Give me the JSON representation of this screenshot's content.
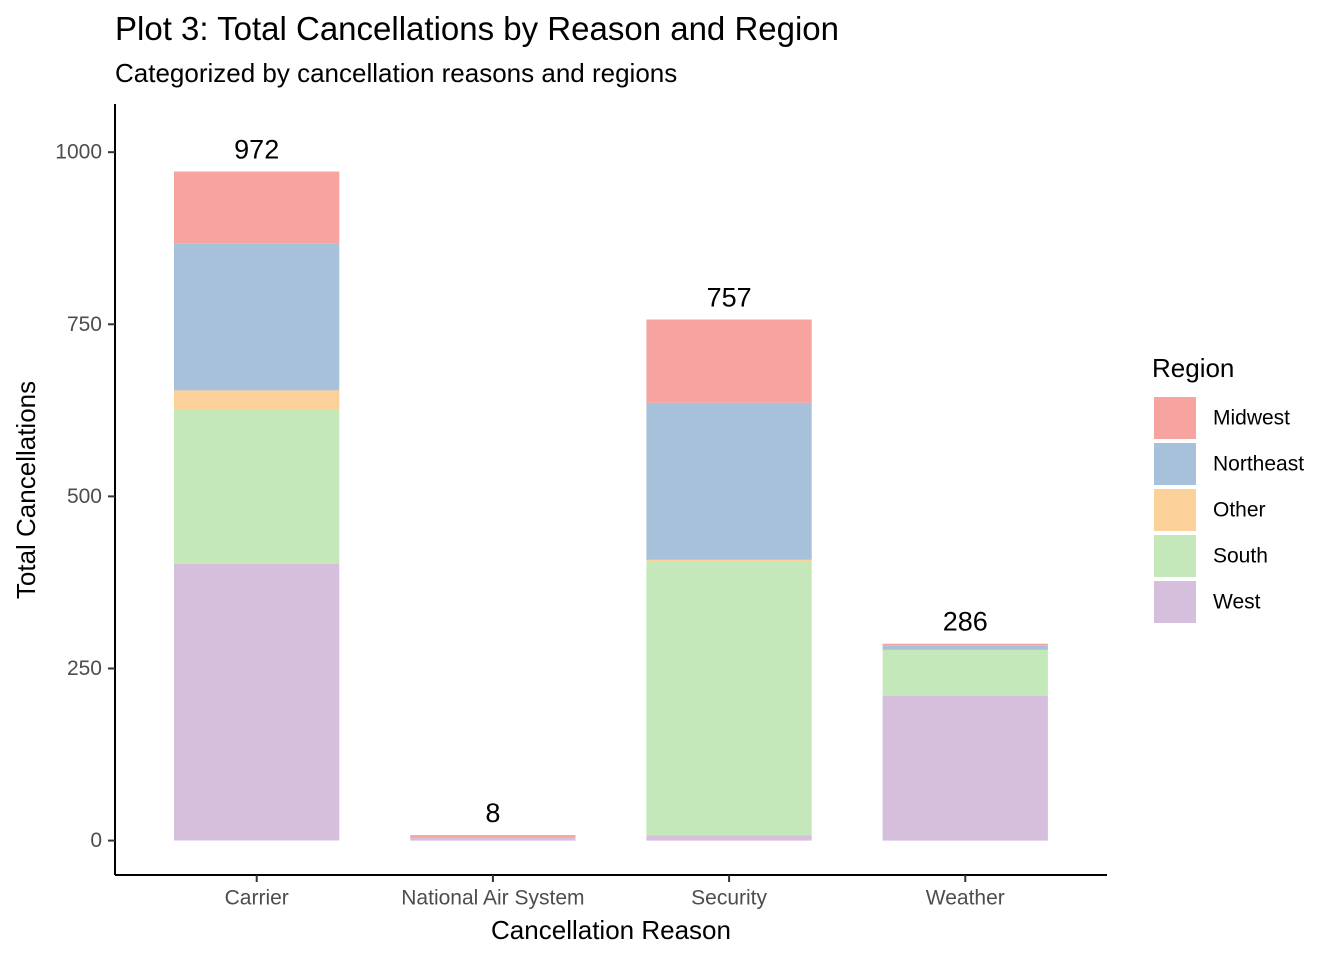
{
  "chart_data": {
    "type": "bar",
    "stacked": true,
    "title": "Plot 3: Total Cancellations by Reason and Region",
    "subtitle": "Categorized by cancellation reasons and regions",
    "xlabel": "Cancellation Reason",
    "ylabel": "Total Cancellations",
    "ylim": [
      -50,
      1070
    ],
    "yticks": [
      0,
      250,
      500,
      750,
      1000
    ],
    "categories": [
      "Carrier",
      "National Air System",
      "Security",
      "Weather"
    ],
    "series": [
      {
        "name": "West",
        "color": "#D6BFDC",
        "values": [
          402,
          4,
          8,
          210
        ]
      },
      {
        "name": "South",
        "color": "#C4E8BA",
        "values": [
          225,
          0,
          397,
          67
        ]
      },
      {
        "name": "Other",
        "color": "#FCD199",
        "values": [
          27,
          0,
          3,
          0
        ]
      },
      {
        "name": "Northeast",
        "color": "#A8C1DB",
        "values": [
          214,
          0,
          228,
          6
        ]
      },
      {
        "name": "Midwest",
        "color": "#F7A4A0",
        "values": [
          104,
          4,
          121,
          3
        ]
      }
    ],
    "totals": [
      "972",
      "8",
      "757",
      "286"
    ],
    "legend": {
      "title": "Region",
      "position": "right",
      "order": [
        "Midwest",
        "Northeast",
        "Other",
        "South",
        "West"
      ]
    },
    "grid": false
  }
}
